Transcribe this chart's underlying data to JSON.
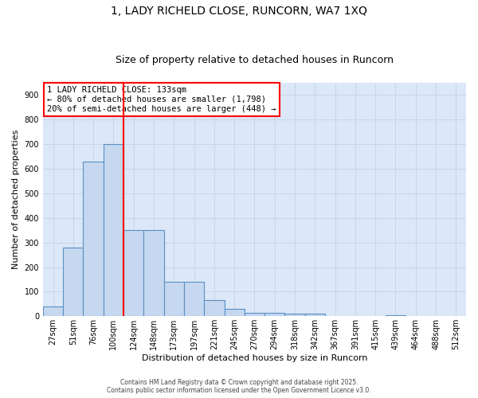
{
  "title": "1, LADY RICHELD CLOSE, RUNCORN, WA7 1XQ",
  "subtitle": "Size of property relative to detached houses in Runcorn",
  "xlabel": "Distribution of detached houses by size in Runcorn",
  "ylabel": "Number of detached properties",
  "categories": [
    "27sqm",
    "51sqm",
    "76sqm",
    "100sqm",
    "124sqm",
    "148sqm",
    "173sqm",
    "197sqm",
    "221sqm",
    "245sqm",
    "270sqm",
    "294sqm",
    "318sqm",
    "342sqm",
    "367sqm",
    "391sqm",
    "415sqm",
    "439sqm",
    "464sqm",
    "488sqm",
    "512sqm"
  ],
  "values": [
    40,
    280,
    630,
    700,
    350,
    350,
    140,
    140,
    65,
    30,
    15,
    15,
    10,
    10,
    0,
    0,
    0,
    5,
    0,
    0,
    0
  ],
  "bar_color": "#c5d8f0",
  "bar_edge_color": "#5a8fc2",
  "vline_color": "red",
  "annotation_line1": "1 LADY RICHELD CLOSE: 133sqm",
  "annotation_line2": "← 80% of detached houses are smaller (1,798)",
  "annotation_line3": "20% of semi-detached houses are larger (448) →",
  "annotation_box_color": "white",
  "annotation_box_edge_color": "red",
  "ylim": [
    0,
    950
  ],
  "yticks": [
    0,
    100,
    200,
    300,
    400,
    500,
    600,
    700,
    800,
    900
  ],
  "grid_color": "#c8d4e8",
  "bg_color": "#dce8f8",
  "footer1": "Contains HM Land Registry data © Crown copyright and database right 2025.",
  "footer2": "Contains public sector information licensed under the Open Government Licence v3.0.",
  "title_fontsize": 10,
  "subtitle_fontsize": 9,
  "tick_fontsize": 7,
  "ylabel_fontsize": 8,
  "xlabel_fontsize": 8,
  "annotation_fontsize": 7.5
}
